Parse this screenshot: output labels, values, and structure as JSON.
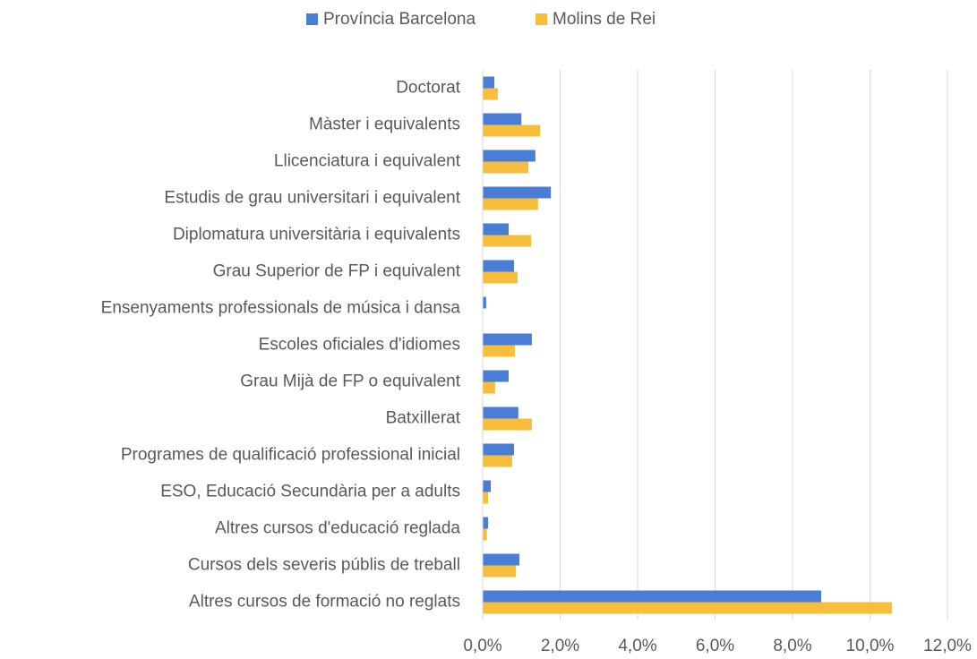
{
  "chart_data": {
    "type": "hbar",
    "categories": [
      "Doctorat",
      "Màster i equivalents",
      "Llicenciatura i equivalent",
      "Estudis de grau universitari i equivalent",
      "Diplomatura universitària i equivalents",
      "Grau Superior de FP i equivalent",
      "Ensenyaments professionals de música i dansa",
      "Escoles oficiales d'idiomes",
      "Grau Mijà de FP o equivalent",
      "Batxillerat",
      "Programes de qualificació professional inicial",
      "ESO, Educació Secundària per a adults",
      "Altres cursos d'educació reglada",
      "Cursos dels severis públis de treball",
      "Altres cursos de formació no reglats"
    ],
    "series": [
      {
        "name": "Província Barcelona",
        "color": "#4a7ed6",
        "values": [
          0.3,
          1.0,
          1.36,
          1.76,
          0.67,
          0.81,
          0.09,
          1.27,
          0.67,
          0.92,
          0.81,
          0.21,
          0.14,
          0.95,
          8.74
        ]
      },
      {
        "name": "Molins de Rei",
        "color": "#f7be3c",
        "values": [
          0.39,
          1.48,
          1.18,
          1.43,
          1.25,
          0.9,
          0,
          0.83,
          0.32,
          1.27,
          0.76,
          0.14,
          0.11,
          0.86,
          10.57
        ]
      }
    ],
    "xlim": [
      0,
      12
    ],
    "xticks": [
      {
        "value": 0,
        "label": "0,0%"
      },
      {
        "value": 2,
        "label": "2,0%"
      },
      {
        "value": 4,
        "label": "4,0%"
      },
      {
        "value": 6,
        "label": "6,0%"
      },
      {
        "value": 8,
        "label": "8,0%"
      },
      {
        "value": 10,
        "label": "10,0%"
      },
      {
        "value": 12,
        "label": "12,0%"
      }
    ],
    "grid": true,
    "legend": "top"
  }
}
